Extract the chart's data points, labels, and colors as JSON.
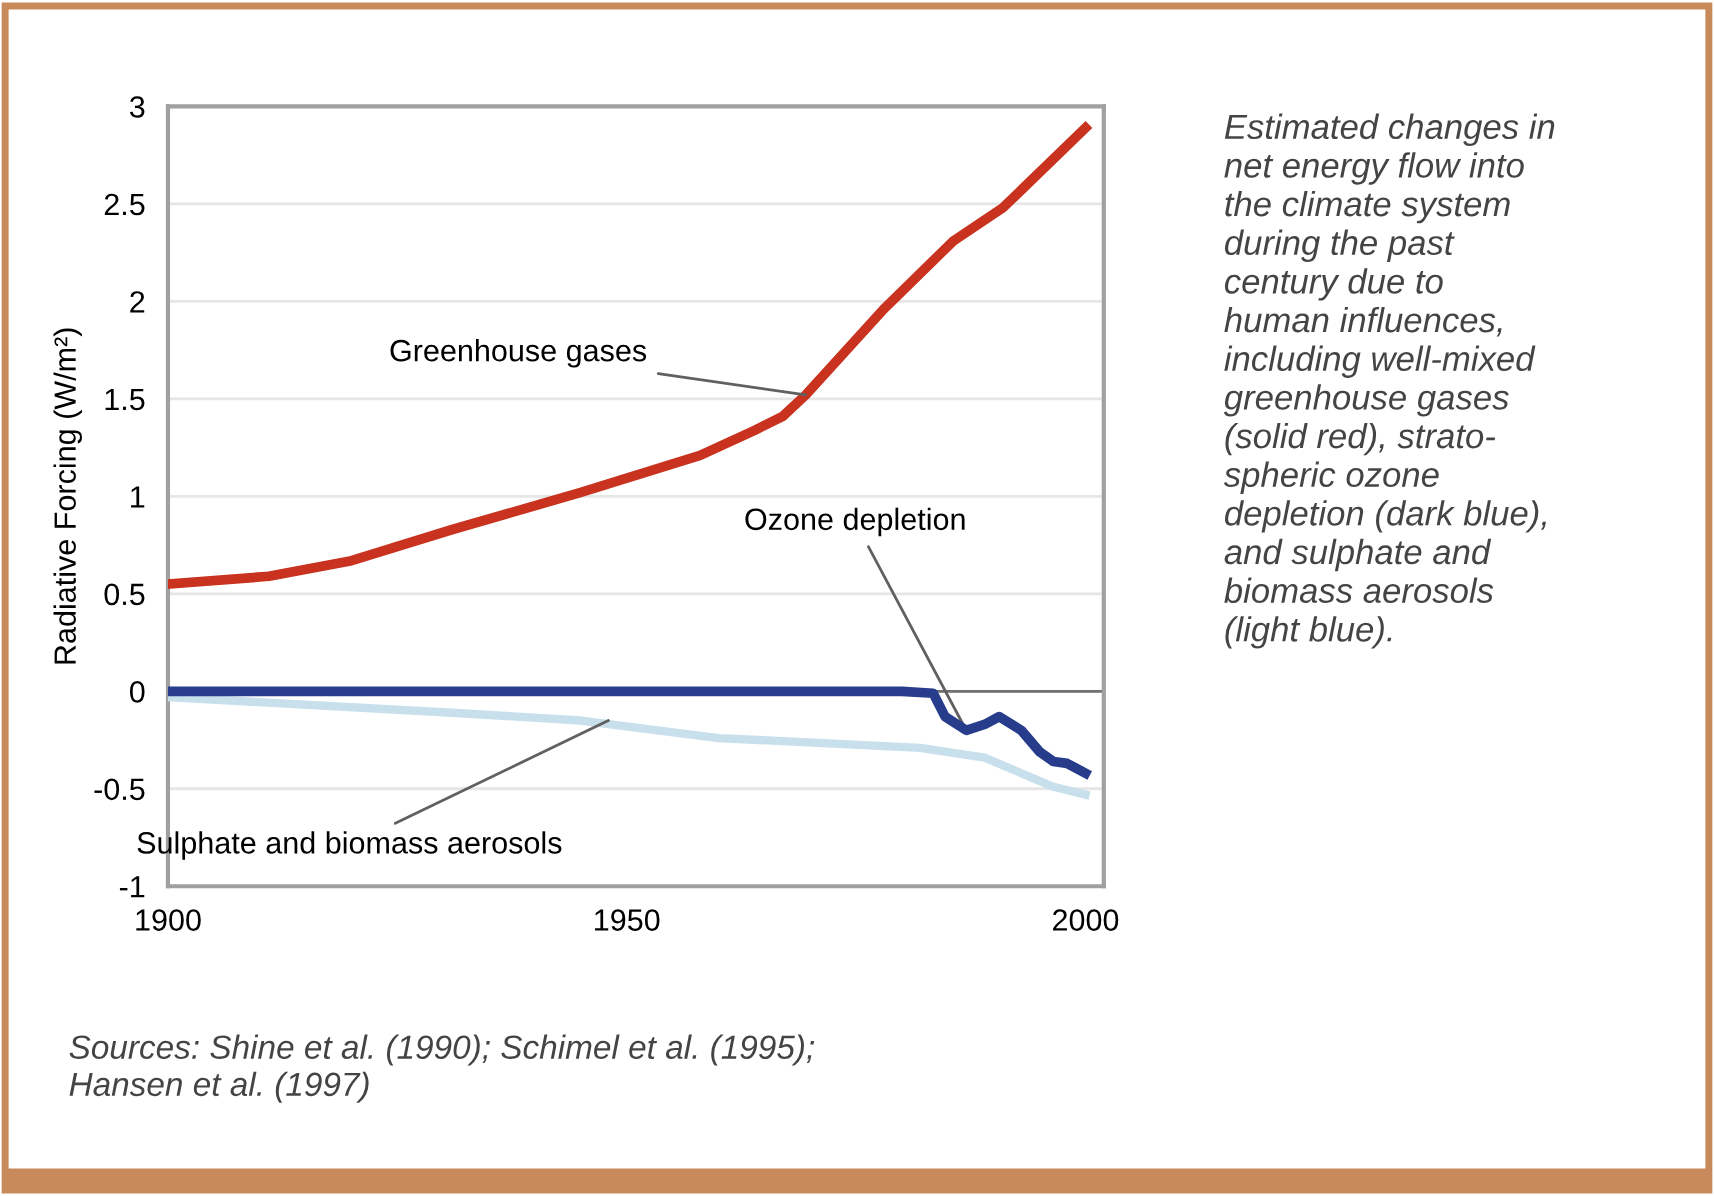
{
  "chart_data": {
    "type": "line",
    "ylabel": "Radiative Forcing (W/m²)",
    "xlim": [
      1900,
      2002
    ],
    "xticks": [
      1900,
      1950,
      2000
    ],
    "ylim": [
      -1,
      3
    ],
    "yticks": [
      -1,
      -0.5,
      0,
      0.5,
      1,
      1.5,
      2,
      2.5,
      3
    ],
    "grid": "y",
    "legend": false,
    "line_style": "solid",
    "marker": "none",
    "ref_lines": [
      {
        "axis": "y",
        "value": 0,
        "color": "#707070"
      }
    ],
    "series": [
      {
        "color": "#c8321e",
        "x": [
          1900,
          1911,
          1920,
          1931,
          1945,
          1958,
          1964,
          1967,
          1969.5,
          1978,
          1985.6,
          1991,
          2000
        ],
        "values": [
          0.55,
          0.59,
          0.67,
          0.83,
          1.02,
          1.21,
          1.34,
          1.41,
          1.52,
          1.96,
          2.31,
          2.48,
          2.89
        ]
      },
      {
        "color": "#c8e0ec",
        "x": [
          1900,
          1931,
          1945,
          1960,
          1982,
          1989,
          1996.5,
          2000
        ],
        "values": [
          -0.03,
          -0.11,
          -0.15,
          -0.24,
          -0.29,
          -0.34,
          -0.49,
          -0.53
        ]
      },
      {
        "color": "#283c8c",
        "x": [
          1900,
          1980,
          1983.4,
          1984.7,
          1987,
          1989,
          1990.6,
          1993,
          1995,
          1996.5,
          1998,
          2000
        ],
        "values": [
          0,
          0,
          -0.01,
          -0.13,
          -0.2,
          -0.17,
          -0.13,
          -0.2,
          -0.31,
          -0.36,
          -0.37,
          -0.42
        ]
      }
    ],
    "annotations": [
      {
        "text": "Greenhouse gases",
        "x": 1969.5,
        "y": 1.52
      },
      {
        "text": "Ozone depletion",
        "x": 1987,
        "y": -0.2
      },
      {
        "text": "Sulphate and biomass aerosols",
        "x": 1948,
        "y": -0.15
      },
      "Estimated changes in\nnet energy flow into\nthe climate system\nduring the past\ncentury due to\nhuman influences,\nincluding well-mixed\ngreenhouse gases\n(solid red), strato-\nspheric ozone\ndepletion (dark blue),\nand sulphate and\nbiomass aerosols\n(light blue).",
      "Sources: Shine et al. (1990); Schimel et al. (1995);\nHansen et al. (1997)"
    ]
  }
}
